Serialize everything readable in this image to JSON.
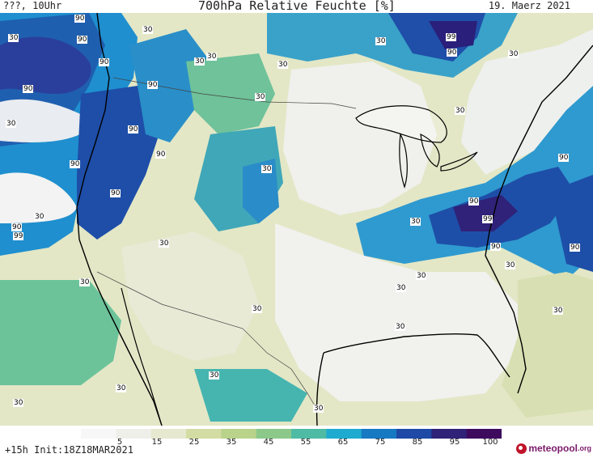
{
  "header": {
    "left": "???, 10Uhr",
    "title": "700hPa Relative Feuchte [%]",
    "date": "19. Maerz 2021"
  },
  "footer": {
    "run_info": "+15h Init:18Z18MAR2021",
    "logo_name": "meteopool",
    "logo_tld": ".org"
  },
  "colorbar": {
    "ticks": [
      "5",
      "15",
      "25",
      "35",
      "45",
      "55",
      "65",
      "75",
      "85",
      "95",
      "100"
    ],
    "colors": [
      "#f7f7f7",
      "#efefea",
      "#e6e8cf",
      "#d3dca3",
      "#b9d38a",
      "#8cc88a",
      "#4fbba5",
      "#1faad0",
      "#1879c3",
      "#1e49a6",
      "#302278",
      "#3e0a5e"
    ]
  },
  "map_labels": [
    "90",
    "30",
    "90",
    "30",
    "30",
    "30",
    "99",
    "90",
    "30",
    "90",
    "90",
    "30",
    "90",
    "90",
    "30",
    "90",
    "30",
    "90",
    "90",
    "30",
    "90",
    "30",
    "90",
    "99",
    "90",
    "99",
    "30",
    "30",
    "90",
    "30",
    "30",
    "30",
    "30",
    "30",
    "30",
    "90",
    "30",
    "30",
    "30",
    "30",
    "30",
    "30",
    "30"
  ]
}
